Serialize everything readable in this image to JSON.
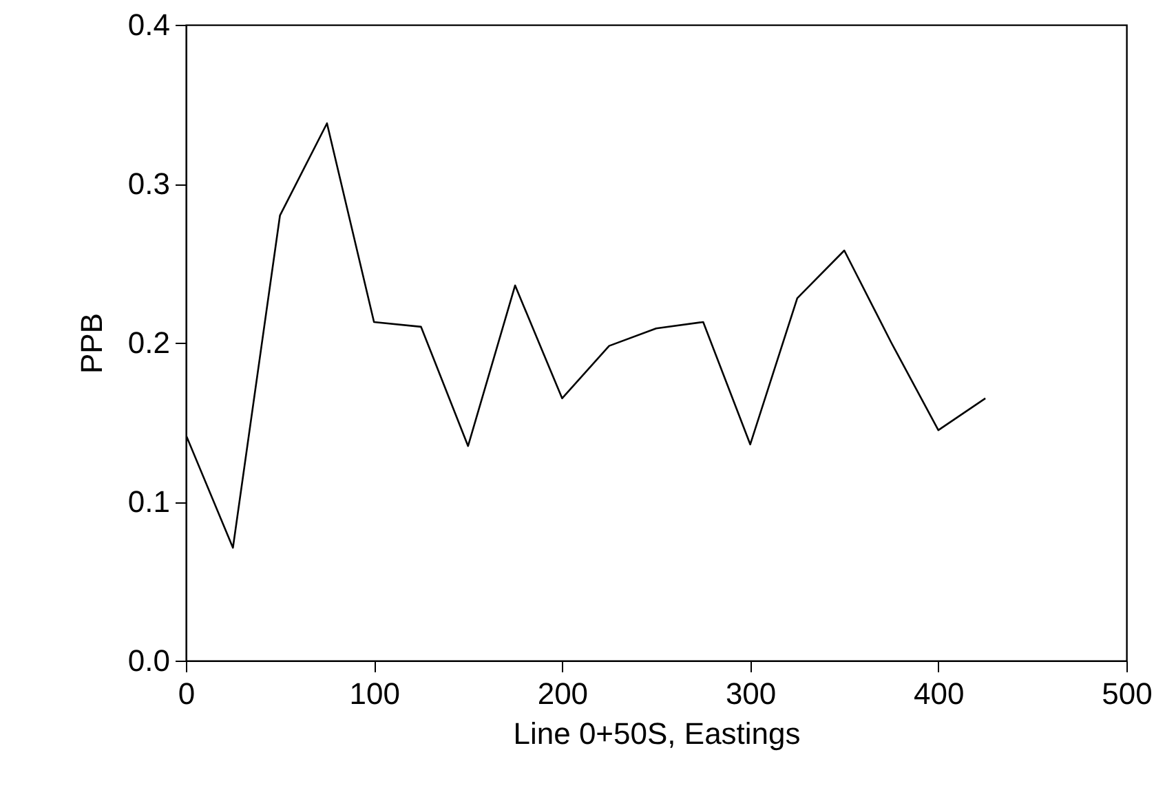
{
  "chart_data": {
    "type": "line",
    "xlabel": "Line 0+50S, Eastings",
    "ylabel": "PPB",
    "x": [
      0,
      25,
      50,
      75,
      100,
      125,
      150,
      175,
      200,
      225,
      250,
      275,
      300,
      325,
      350,
      375,
      400,
      425
    ],
    "series": [
      {
        "color": "#000000",
        "values": [
          0.142,
          0.071,
          0.28,
          0.338,
          0.213,
          0.21,
          0.135,
          0.236,
          0.165,
          0.198,
          0.209,
          0.213,
          0.136,
          0.228,
          0.258,
          0.2,
          0.145,
          0.165
        ]
      }
    ],
    "xlim": [
      0,
      500
    ],
    "xticks": [
      0,
      100,
      200,
      300,
      400,
      500
    ],
    "ylim": [
      0,
      0.4
    ],
    "yticks": [
      {
        "value": 0,
        "label": "0.0"
      },
      0.1,
      0.2,
      0.3,
      0.4
    ],
    "grid": false,
    "marker": "none",
    "line_style": "solid"
  }
}
